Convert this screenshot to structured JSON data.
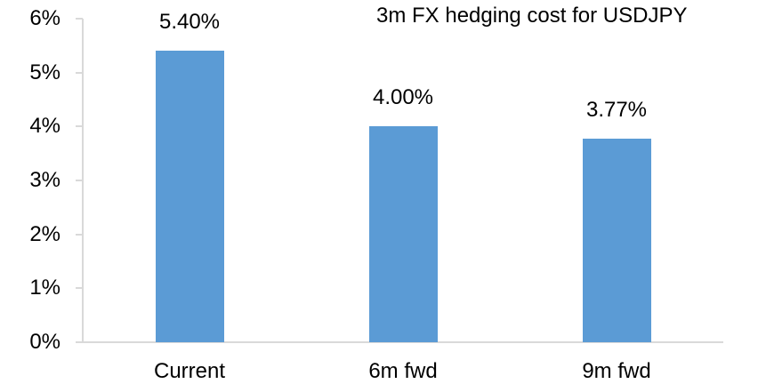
{
  "chart_data": {
    "type": "bar",
    "title": "3m FX hedging cost for USDJPY",
    "categories": [
      "Current",
      "6m fwd",
      "9m fwd"
    ],
    "values": [
      5.4,
      4.0,
      3.77
    ],
    "data_labels": [
      "5.40%",
      "4.00%",
      "3.77%"
    ],
    "ytick_values": [
      0,
      1,
      2,
      3,
      4,
      5,
      6
    ],
    "ytick_labels": [
      "0%",
      "1%",
      "2%",
      "3%",
      "4%",
      "5%",
      "6%"
    ],
    "ylim": [
      0,
      6
    ],
    "xlabel": "",
    "ylabel": "",
    "grid": "off",
    "legend": "none",
    "bar_color": "#5B9BD5",
    "axis_color": "#D9D9D9",
    "text_color": "#000000"
  }
}
